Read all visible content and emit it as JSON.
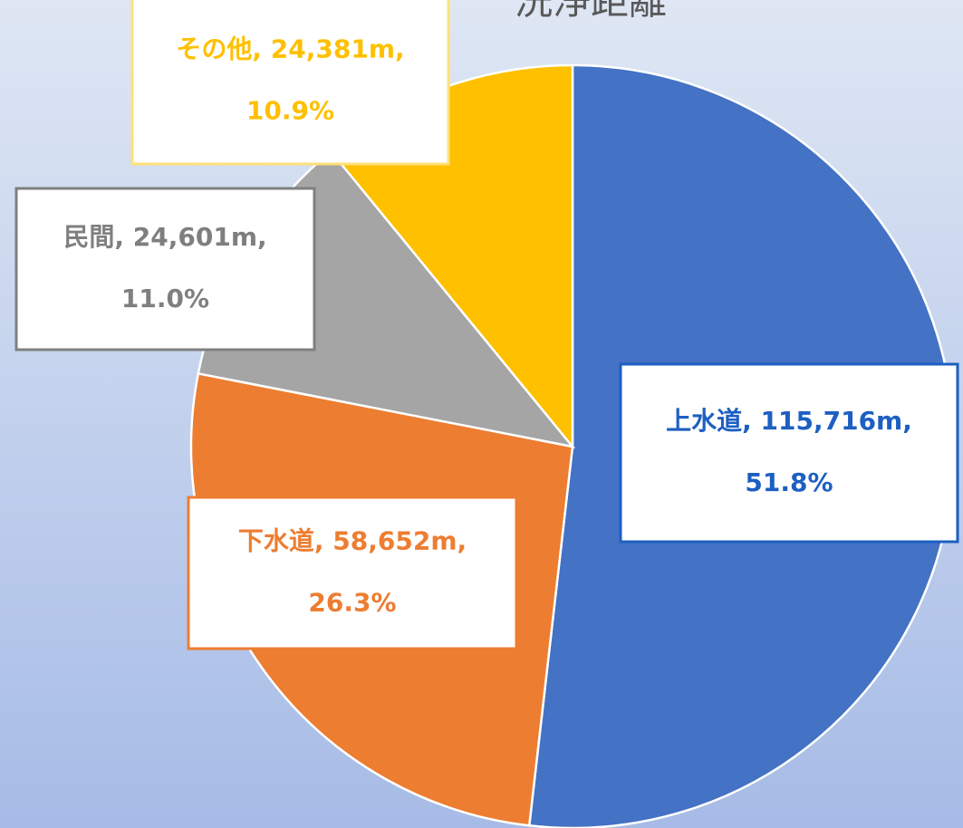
{
  "chart_data": {
    "type": "pie",
    "title": "洗浄距離",
    "categories": [
      "上水道",
      "下水道",
      "民間",
      "その他"
    ],
    "values": [
      115716,
      58652,
      24601,
      24381
    ],
    "value_labels": [
      "115,716m",
      "58,652m",
      "24,601m",
      "24,381m"
    ],
    "percents": [
      51.8,
      26.3,
      11.0,
      10.9
    ],
    "percent_labels": [
      "51.8%",
      "26.3%",
      "11.0%",
      "10.9%"
    ],
    "label_separator": ", ",
    "colors": [
      "#4472c4",
      "#ed7d31",
      "#a5a5a5",
      "#ffc000"
    ],
    "label_colors": [
      "#1d5fc2",
      "#ed7d31",
      "#7f7f7f",
      "#ffc000"
    ]
  }
}
